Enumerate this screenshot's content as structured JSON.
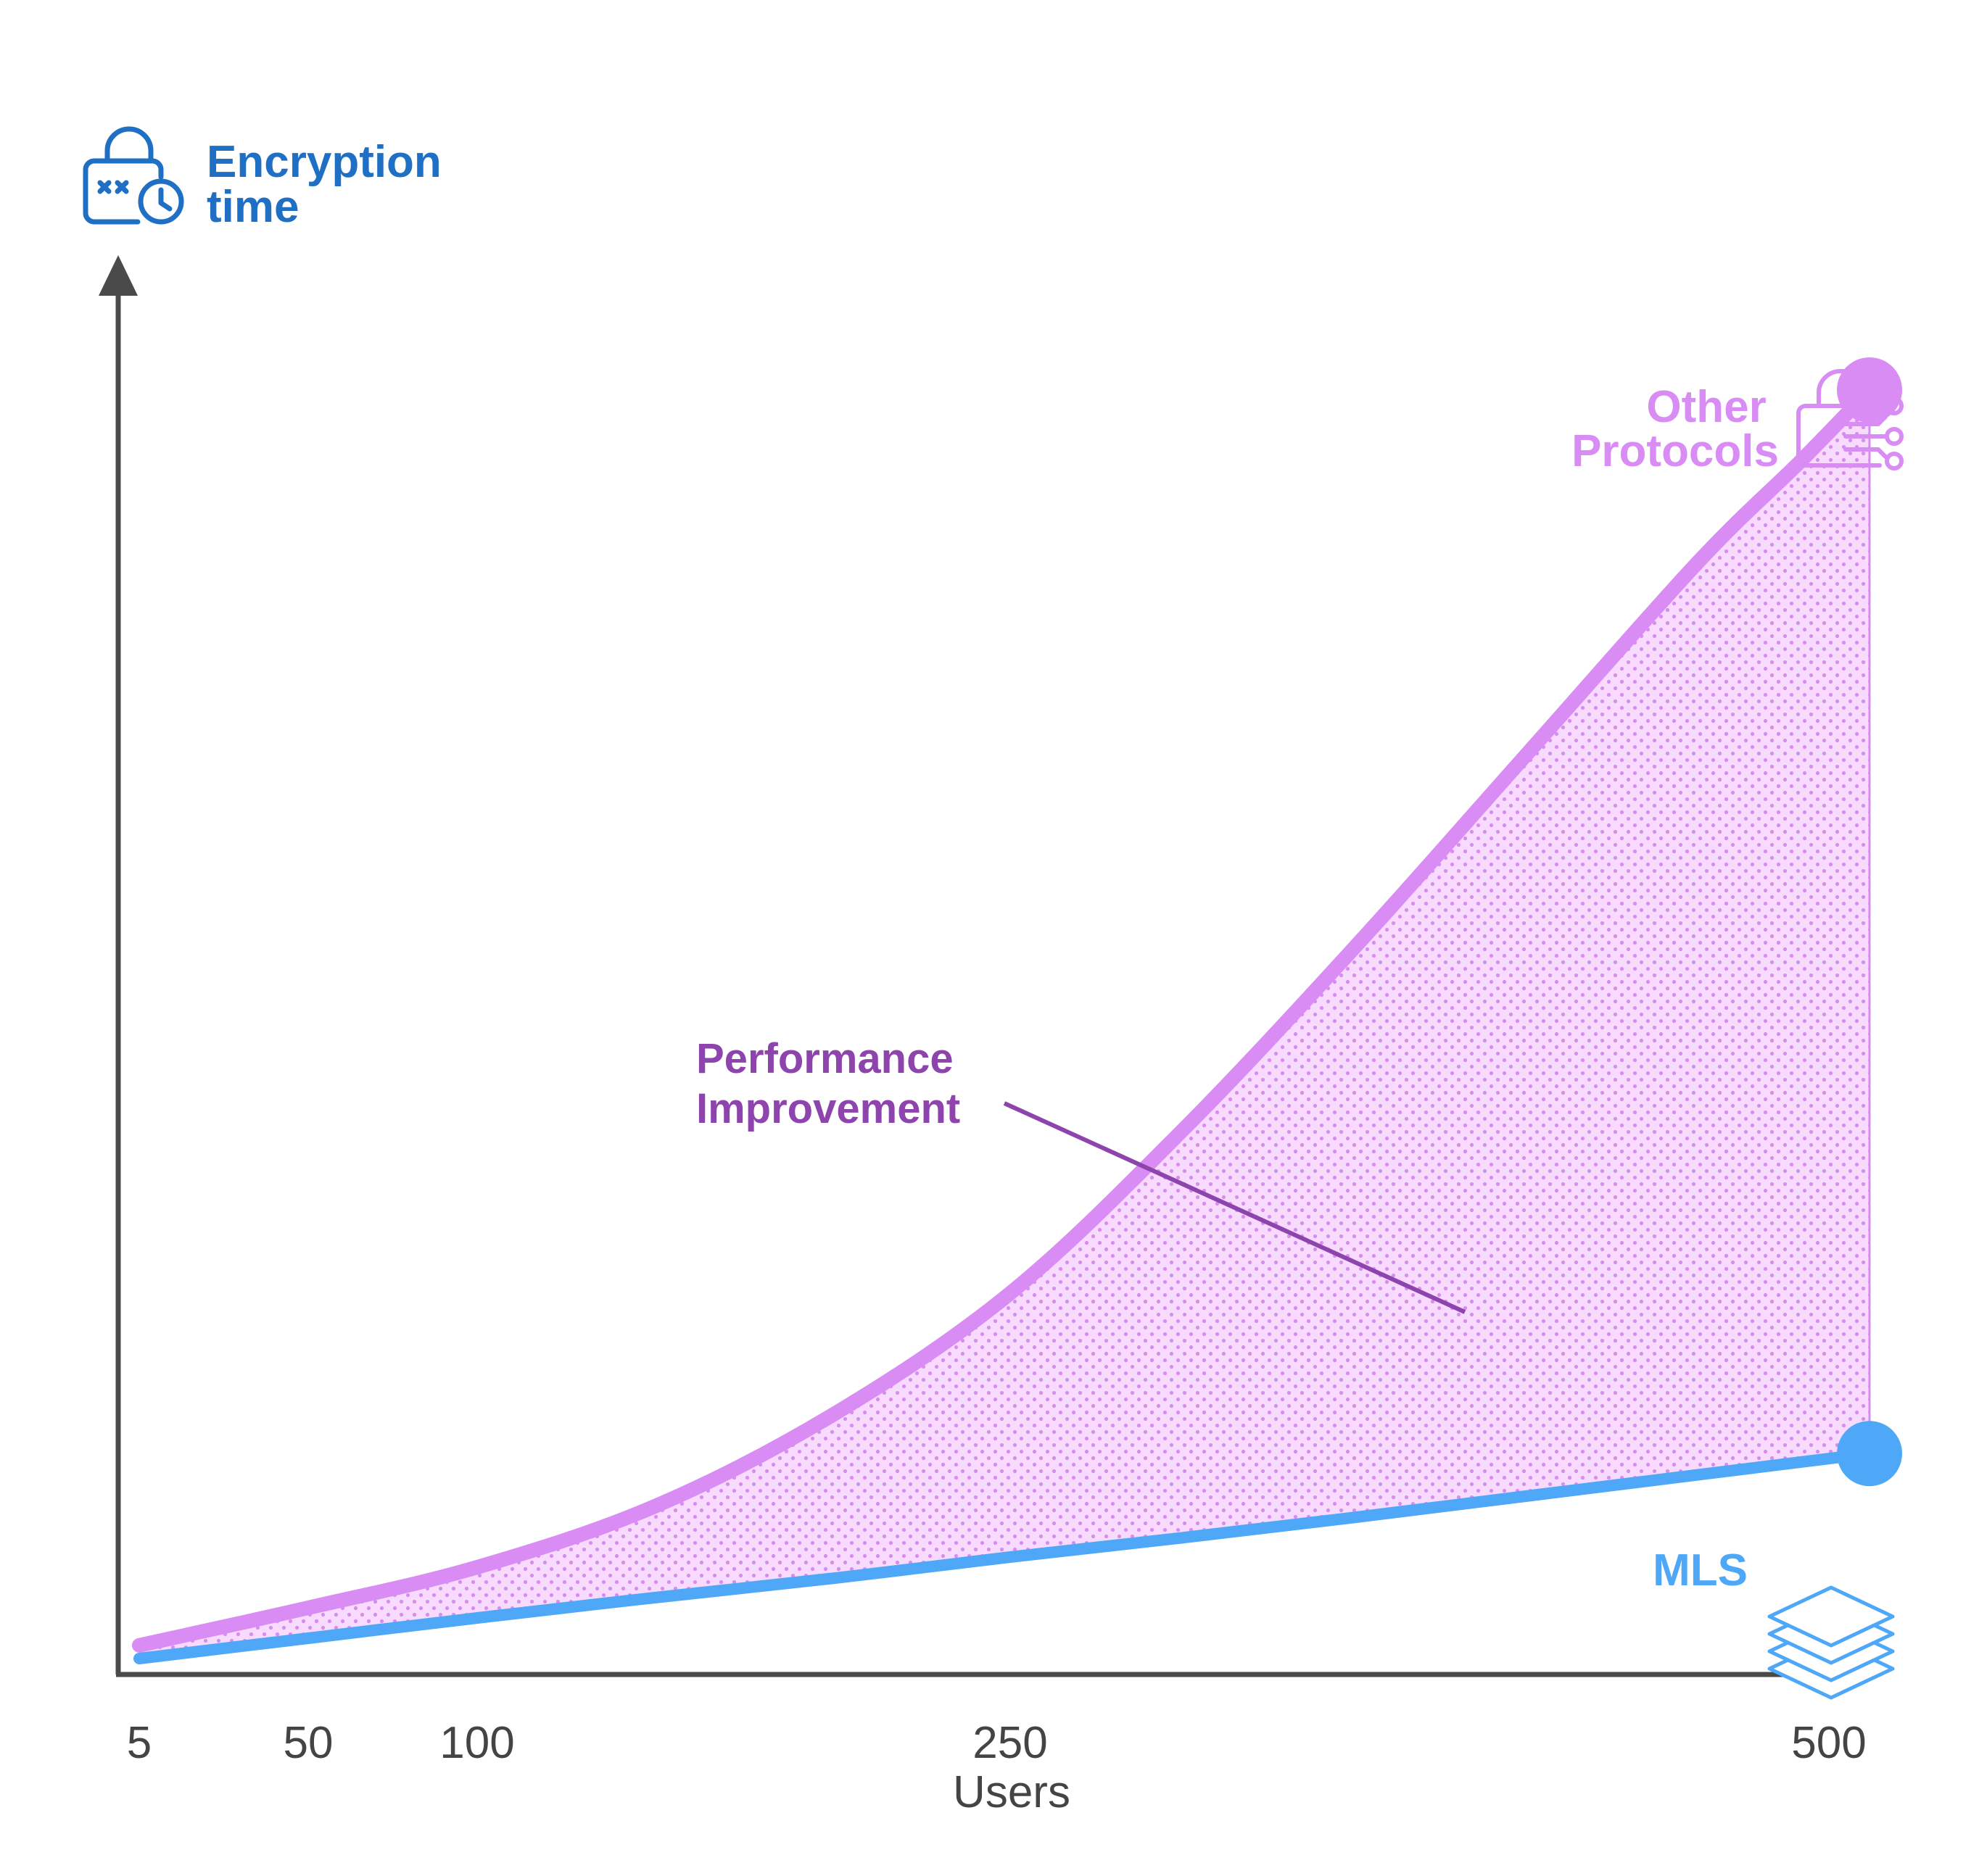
{
  "colors": {
    "axis": "#4a4a4a",
    "y_label": "#1f6fc5",
    "other": "#d88cf4",
    "mls": "#4ea8f7",
    "annotation": "#8e44ad",
    "fill": "#f7dafd",
    "dots": "#d98cf0"
  },
  "icons": {
    "y_label_icon": "lock-clock-icon",
    "other_icon": "lock-circuit-icon",
    "mls_icon": "layers-stack-icon"
  },
  "chart_data": {
    "type": "line",
    "title": "",
    "ylabel": [
      "Encryption",
      "time"
    ],
    "xlabel": "Users",
    "x_ticks": [
      {
        "label": "5",
        "value": 5
      },
      {
        "label": "50",
        "value": 50
      },
      {
        "label": "100",
        "value": 100
      },
      {
        "label": "250",
        "value": 250
      },
      {
        "label": "500",
        "value": 500
      }
    ],
    "y_tick_labels": false,
    "xlim": [
      5,
      500
    ],
    "series": [
      {
        "name": "Other Protocols",
        "name_lines": [
          "Other",
          "Protocols"
        ],
        "key": "other",
        "x": [
          5,
          50,
          100,
          150,
          200,
          250,
          300,
          350,
          400,
          450,
          480,
          500
        ],
        "y": [
          0.013,
          0.05,
          0.09,
          0.15,
          0.24,
          0.36,
          0.52,
          0.7,
          0.89,
          1.08,
          1.18,
          1.25
        ]
      },
      {
        "name": "MLS",
        "name_lines": [
          "MLS"
        ],
        "key": "mls",
        "x": [
          5,
          50,
          100,
          150,
          200,
          250,
          300,
          350,
          400,
          450,
          500
        ],
        "y": [
          0.0,
          0.02,
          0.04,
          0.06,
          0.079,
          0.1,
          0.119,
          0.139,
          0.16,
          0.181,
          0.202
        ]
      }
    ],
    "annotation": {
      "lines": [
        "Performance",
        "Improvement"
      ]
    }
  }
}
